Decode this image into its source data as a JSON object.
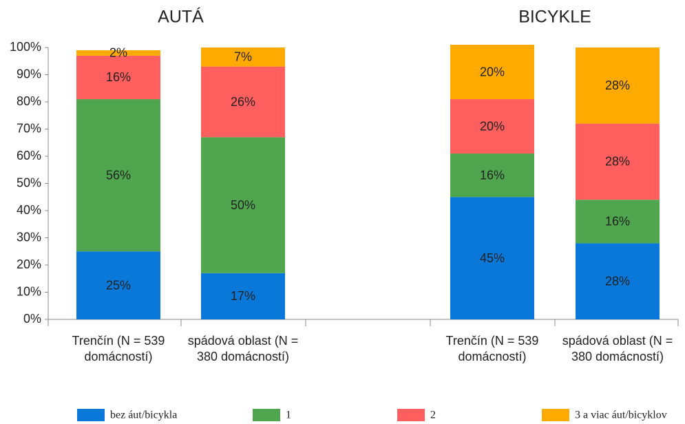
{
  "chart_data": {
    "type": "bar",
    "stacked": true,
    "groups": [
      {
        "title": "AUTÁ",
        "categories": [
          "Trenčín (N = 539 domácností)",
          "spádová oblast (N = 380 domácností)"
        ]
      },
      {
        "title": "BICYKLE",
        "categories": [
          "Trenčín (N = 539 domácností)",
          "spádová oblast (N = 380 domácností)"
        ]
      }
    ],
    "series": [
      {
        "name": "bez áut/bicykla",
        "color": "#0a78d8",
        "values": [
          25,
          17,
          45,
          28
        ],
        "value_labels": [
          "25%",
          "17%",
          "45%",
          "28%"
        ]
      },
      {
        "name": "1",
        "color": "#4fa64f",
        "values": [
          56,
          50,
          16,
          16
        ],
        "value_labels": [
          "56%",
          "50%",
          "16%",
          "16%"
        ]
      },
      {
        "name": "2",
        "color": "#ff5f5f",
        "values": [
          16,
          26,
          20,
          28
        ],
        "value_labels": [
          "16%",
          "26%",
          "20%",
          "28%"
        ]
      },
      {
        "name": "3 a viac áut/bicyklov",
        "color": "#ffaa00",
        "values": [
          2,
          7,
          20,
          28
        ],
        "value_labels": [
          "2%",
          "7%",
          "20%",
          "28%"
        ]
      }
    ],
    "ylim": [
      0,
      100
    ],
    "yticks": [
      {
        "value": 0,
        "label": "0%"
      },
      {
        "value": 10,
        "label": "10%"
      },
      {
        "value": 20,
        "label": "20%"
      },
      {
        "value": 30,
        "label": "30%"
      },
      {
        "value": 40,
        "label": "40%"
      },
      {
        "value": 50,
        "label": "50%"
      },
      {
        "value": 60,
        "label": "60%"
      },
      {
        "value": 70,
        "label": "70%"
      },
      {
        "value": 80,
        "label": "80%"
      },
      {
        "value": 90,
        "label": "90%"
      },
      {
        "value": 100,
        "label": "100%"
      }
    ],
    "legend": "bottom"
  }
}
